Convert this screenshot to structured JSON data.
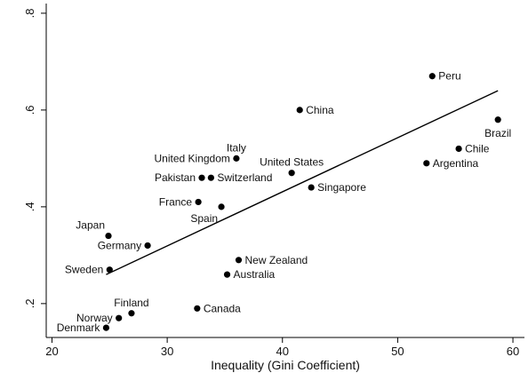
{
  "chart_data": {
    "type": "scatter",
    "title": "",
    "xlabel": "Inequality (Gini Coefficient)",
    "ylabel": "",
    "xlim": [
      19.5,
      61
    ],
    "ylim": [
      0.13,
      0.82
    ],
    "xticks": [
      {
        "value": 20,
        "label": "20"
      },
      {
        "value": 30,
        "label": "30"
      },
      {
        "value": 40,
        "label": "40"
      },
      {
        "value": 50,
        "label": "50"
      },
      {
        "value": 60,
        "label": "60"
      }
    ],
    "yticks": [
      {
        "value": 0.2,
        "label": ".2"
      },
      {
        "value": 0.4,
        "label": ".4"
      },
      {
        "value": 0.6,
        "label": ".6"
      },
      {
        "value": 0.8,
        "label": ".8"
      }
    ],
    "y_tick_labels_rotated": true,
    "grid": false,
    "legend": "none",
    "point_color": "#000000",
    "points": [
      {
        "label": "Peru",
        "x": 53.0,
        "y": 0.67,
        "pos": "right"
      },
      {
        "label": "China",
        "x": 41.5,
        "y": 0.6,
        "pos": "right"
      },
      {
        "label": "Brazil",
        "x": 58.7,
        "y": 0.58,
        "pos": "below"
      },
      {
        "label": "Chile",
        "x": 55.3,
        "y": 0.52,
        "pos": "right"
      },
      {
        "label": "Argentina",
        "x": 52.5,
        "y": 0.49,
        "pos": "right"
      },
      {
        "label": "Italy",
        "x": 36.0,
        "y": 0.5,
        "pos": "above"
      },
      {
        "label": "United Kingdom",
        "x": 36.0,
        "y": 0.5,
        "pos": "left"
      },
      {
        "label": "United States",
        "x": 40.8,
        "y": 0.47,
        "pos": "above"
      },
      {
        "label": "Pakistan",
        "x": 33.0,
        "y": 0.46,
        "pos": "left"
      },
      {
        "label": "Switzerland",
        "x": 33.8,
        "y": 0.46,
        "pos": "right"
      },
      {
        "label": "Singapore",
        "x": 42.5,
        "y": 0.44,
        "pos": "right"
      },
      {
        "label": "France",
        "x": 32.7,
        "y": 0.41,
        "pos": "left"
      },
      {
        "label": "Spain",
        "x": 34.7,
        "y": 0.4,
        "pos": "belowleft"
      },
      {
        "label": "Japan",
        "x": 24.9,
        "y": 0.34,
        "pos": "aboveleft"
      },
      {
        "label": "Germany",
        "x": 28.3,
        "y": 0.32,
        "pos": "left"
      },
      {
        "label": "New Zealand",
        "x": 36.2,
        "y": 0.29,
        "pos": "right"
      },
      {
        "label": "Sweden",
        "x": 25.0,
        "y": 0.27,
        "pos": "left"
      },
      {
        "label": "Australia",
        "x": 35.2,
        "y": 0.26,
        "pos": "right"
      },
      {
        "label": "Canada",
        "x": 32.6,
        "y": 0.19,
        "pos": "right"
      },
      {
        "label": "Finland",
        "x": 26.9,
        "y": 0.18,
        "pos": "above"
      },
      {
        "label": "Norway",
        "x": 25.8,
        "y": 0.17,
        "pos": "left"
      },
      {
        "label": "Denmark",
        "x": 24.7,
        "y": 0.15,
        "pos": "left"
      }
    ],
    "fit_line": {
      "x": [
        24.7,
        58.7
      ],
      "y": [
        0.26,
        0.64
      ]
    }
  }
}
